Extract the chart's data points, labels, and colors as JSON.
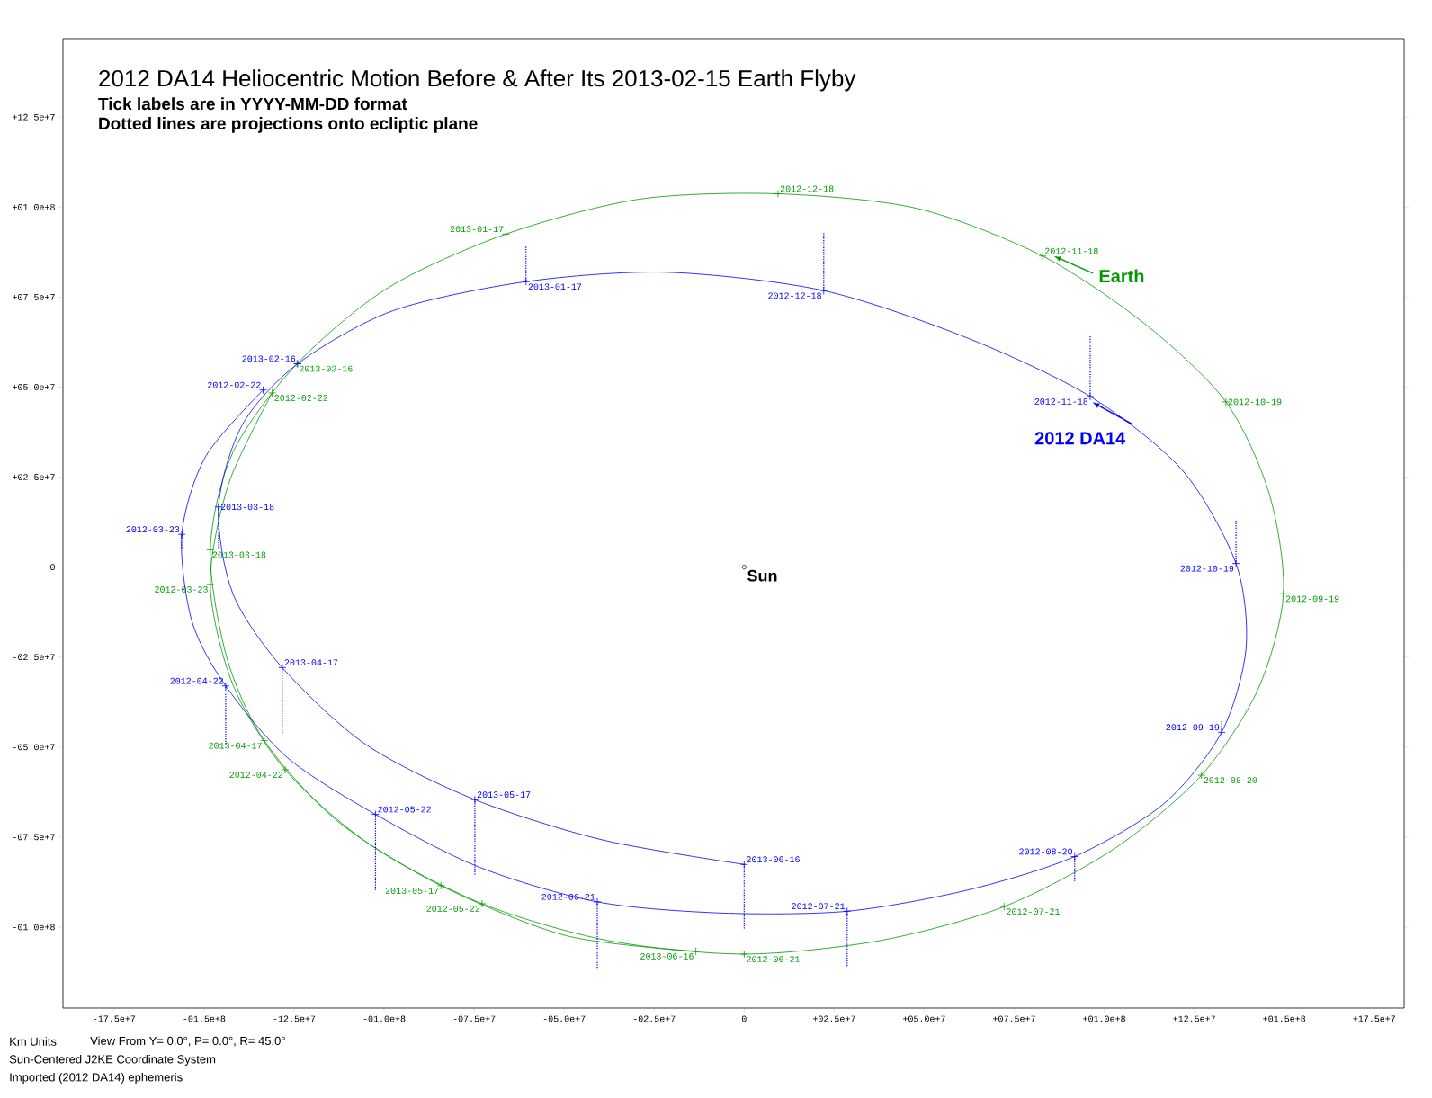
{
  "chart_data": {
    "type": "line",
    "title": "2012 DA14 Heliocentric Motion Before & After Its 2013-02-15 Earth Flyby",
    "subtitle": "Tick labels are in YYYY-MM-DD format",
    "annotations": [
      "Dotted lines are projections onto ecliptic plane",
      "Km Units",
      "View From Y=  0.0°, P=  0.0°, R= 45.0°",
      "Sun-Centered J2KE Coordinate System",
      "Imported (2012 DA14) ephemeris"
    ],
    "xlim": [
      -189200000.0,
      183300000.0
    ],
    "ylim": [
      -122500000.0,
      146800000.0
    ],
    "xticks": [
      {
        "value": -175000000.0,
        "label": "-17.5e+7"
      },
      {
        "value": -150000000.0,
        "label": "-01.5e+8"
      },
      {
        "value": -125000000.0,
        "label": "-12.5e+7"
      },
      {
        "value": -100000000.0,
        "label": "-01.0e+8"
      },
      {
        "value": -75000000.0,
        "label": "-07.5e+7"
      },
      {
        "value": -50000000.0,
        "label": "-05.0e+7"
      },
      {
        "value": -25000000.0,
        "label": "-02.5e+7"
      },
      0,
      {
        "value": 25000000.0,
        "label": "+02.5e+7"
      },
      {
        "value": 50000000.0,
        "label": "+05.0e+7"
      },
      {
        "value": 75000000.0,
        "label": "+07.5e+7"
      },
      {
        "value": 100000000.0,
        "label": "+01.0e+8"
      },
      {
        "value": 125000000.0,
        "label": "+12.5e+7"
      },
      {
        "value": 150000000.0,
        "label": "+01.5e+8"
      },
      {
        "value": 175000000.0,
        "label": "+17.5e+7"
      }
    ],
    "yticks": [
      {
        "value": -100000000.0,
        "label": "-01.0e+8"
      },
      {
        "value": -75000000.0,
        "label": "-07.5e+7"
      },
      {
        "value": -50000000.0,
        "label": "-05.0e+7"
      },
      {
        "value": -25000000.0,
        "label": "-02.5e+7"
      },
      0,
      {
        "value": 25000000.0,
        "label": "+02.5e+7"
      },
      {
        "value": 50000000.0,
        "label": "+05.0e+7"
      },
      {
        "value": 75000000.0,
        "label": "+07.5e+7"
      },
      {
        "value": 100000000.0,
        "label": "+01.0e+8"
      },
      {
        "value": 125000000.0,
        "label": "+12.5e+7"
      }
    ],
    "series": [
      {
        "name": "Earth",
        "color": "#009900",
        "marker": "none",
        "line_style": "solid",
        "x": [
          -131100000.0,
          -143200000.0,
          -148300000.0,
          -142000000.0,
          -127500000.0,
          -103900000.0,
          -72800000.0,
          -38000000.0,
          0,
          38000000.0,
          72200000.0,
          102700000.0,
          127000000.0,
          142700000.0,
          149800000.0,
          145800000.0,
          133800000.0,
          111500000.0,
          82900000.0,
          48200000.0,
          9400000.0,
          -29200000.0,
          -66200000.0,
          -98900000.0,
          -124200000.0,
          -142000000.0,
          -148300000.0,
          -143700000.0,
          -133300000.0,
          -112800000.0,
          -84200000.0,
          -49400000.0,
          -13400000.0
        ],
        "values": [
          48400000.0,
          23100000.0,
          -4800000.0,
          -32700000.0,
          -56300000.0,
          -77100000.0,
          -93500000.0,
          -103700000.0,
          -107500000.0,
          -103700000.0,
          -94300000.0,
          -78300000.0,
          -57800000.0,
          -34000000.0,
          -7400000.0,
          20500000.0,
          45900000.0,
          67400000.0,
          86400000.0,
          99600000.0,
          103700000.0,
          102200000.0,
          92500000.0,
          77600000.0,
          56500000.0,
          31900000.0,
          4800000.0,
          -25100000.0,
          -48200000.0,
          -70700000.0,
          -88500000.0,
          -102400000.0,
          -106700000.0
        ]
      },
      {
        "type": "scatter",
        "color": "#009900",
        "marker": "cross",
        "x": [
          -131100000.0,
          -148300000.0,
          -127500000.0,
          -72800000.0,
          0,
          72200000.0,
          127000000.0,
          149800000.0,
          133800000.0,
          82900000.0,
          9400000.0,
          -66200000.0,
          -124200000.0,
          -148300000.0,
          -133300000.0,
          -84200000.0,
          -13400000.0
        ],
        "values": [
          48400000.0,
          -4800000.0,
          -56300000.0,
          -93500000.0,
          -107500000.0,
          -94300000.0,
          -57800000.0,
          -7400000.0,
          45900000.0,
          86400000.0,
          103700000.0,
          92500000.0,
          56500000.0,
          4800000.0,
          -48200000.0,
          -88500000.0,
          -106700000.0
        ],
        "value_labels": [
          "2012-02-22",
          "2012-03-23",
          "2012-04-22",
          "2012-05-22",
          "2012-06-21",
          "2012-07-21",
          "2012-08-20",
          "2012-09-19",
          "2012-10-19",
          "2012-11-18",
          "2012-12-18",
          "2013-01-17",
          "2013-02-16",
          "2013-03-18",
          "2013-04-17",
          "2013-05-17",
          "2013-06-16"
        ]
      },
      {
        "name": "2012 DA14",
        "color": "#0000ff",
        "marker": "none",
        "line_style": "solid",
        "x": [
          -133600000.0,
          -149600000.0,
          -156200000.0,
          -153400000.0,
          -144000000.0,
          -126800000.0,
          -102400000.0,
          -73500000.0,
          -40800000.0,
          -6300000.0,
          28600000.0,
          62100000.0,
          91800000.0,
          116600000.0,
          132600000.0,
          139400000.0,
          136600000.0,
          121700000.0,
          96100000.0,
          62100000.0,
          22100000.0,
          -21500000.0,
          -60600000.0,
          -97600000.0,
          -124000000.0,
          -139400000.0,
          -146000000.0,
          -142000000.0,
          -128300000.0,
          -105200000.0,
          -74800000.0,
          -39300000.0,
          0
        ],
        "values": [
          49200000.0,
          30700000.0,
          9100000.0,
          -15000000.0,
          -33000000.0,
          -53000000.0,
          -68700000.0,
          -83400000.0,
          -93000000.0,
          -96100000.0,
          -95600000.0,
          -89700000.0,
          -80400000.0,
          -65700000.0,
          -45900000.0,
          -22600000.0,
          1000000.0,
          26900000.0,
          47400000.0,
          63600000.0,
          76800000.0,
          81900000.0,
          79300000.0,
          71200000.0,
          56500000.0,
          39500000.0,
          16700000.0,
          -7400000.0,
          -27900000.0,
          -49200000.0,
          -64600000.0,
          -75800000.0,
          -82600000.0
        ]
      },
      {
        "type": "scatter",
        "color": "#0000ff",
        "marker": "cross",
        "x": [
          -133600000.0,
          -156200000.0,
          -144000000.0,
          -102400000.0,
          -40800000.0,
          28600000.0,
          91800000.0,
          132600000.0,
          136600000.0,
          96100000.0,
          22100000.0,
          -60600000.0,
          -124000000.0,
          -146000000.0,
          -128300000.0,
          -74800000.0,
          0
        ],
        "values": [
          49200000.0,
          9100000.0,
          -33000000.0,
          -68700000.0,
          -93000000.0,
          -95600000.0,
          -80400000.0,
          -45900000.0,
          1000000.0,
          47400000.0,
          76800000.0,
          79300000.0,
          56500000.0,
          16700000.0,
          -27900000.0,
          -64600000.0,
          -82600000.0
        ],
        "value_labels": [
          "2012-02-22",
          "2012-03-23",
          "2012-04-22",
          "2012-05-22",
          "2012-06-21",
          "2012-07-21",
          "2012-08-20",
          "2012-09-19",
          "2012-10-19",
          "2012-11-18",
          "2012-12-18",
          "2013-01-17",
          "2013-02-16",
          "2013-03-18",
          "2013-04-17",
          "2013-05-17",
          "2013-06-16"
        ]
      },
      {
        "color": "#0000ff",
        "marker": "none",
        "line_style": "dotted",
        "x": [
          -60600000.0,
          -60600000.0,
          null,
          22100000.0,
          22100000.0,
          null,
          96100000.0,
          96100000.0,
          null,
          136600000.0,
          136600000.0,
          null,
          132600000.0,
          132600000.0,
          null,
          91800000.0,
          91800000.0,
          null,
          28600000.0,
          28600000.0,
          null,
          -40800000.0,
          -40800000.0,
          null,
          0,
          0,
          null,
          -102400000.0,
          -102400000.0,
          null,
          -74800000.0,
          -74800000.0,
          null,
          -144000000.0,
          -144000000.0,
          null,
          -128300000.0,
          -128300000.0,
          null,
          -156200000.0,
          -156200000.0,
          null,
          -146000000.0,
          -146000000.0
        ],
        "values": [
          89000000.0,
          79300000.0,
          null,
          92800000.0,
          76800000.0,
          null,
          64100000.0,
          47400000.0,
          null,
          12900000.0,
          1000000.0,
          null,
          -42800000.0,
          -45900000.0,
          null,
          -87200000.0,
          -80400000.0,
          null,
          -110800000.0,
          -95600000.0,
          null,
          -111300000.0,
          -93000000.0,
          null,
          -100400000.0,
          -82600000.0,
          null,
          -89700000.0,
          -68700000.0,
          null,
          -85400000.0,
          -64600000.0,
          null,
          -49200000.0,
          -33000000.0,
          null,
          -46100000.0,
          -27900000.0,
          null,
          5300000.0,
          9100000.0,
          null,
          5300000.0,
          16700000.0
        ]
      },
      {
        "name": "Sun",
        "type": "scatter",
        "color": "#000000",
        "marker": "circle",
        "x": [
          0
        ],
        "values": [
          0
        ]
      }
    ]
  }
}
